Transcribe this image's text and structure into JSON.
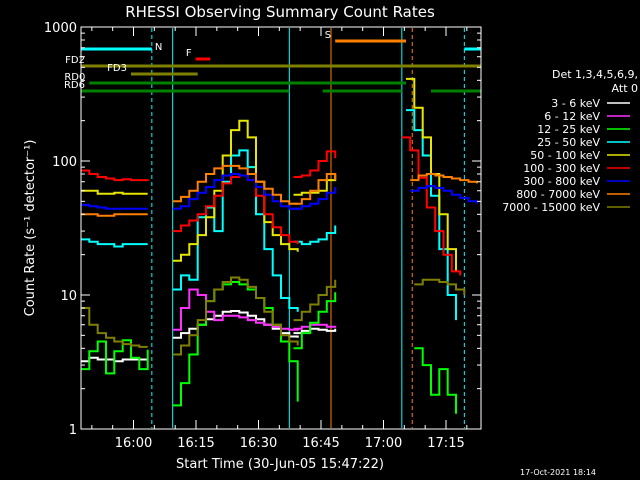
{
  "chart_data": {
    "type": "line",
    "title": "RHESSI Observing Summary Count Rates",
    "xlabel": "Start Time (30-Jun-05 15:47:22)",
    "ylabel": "Count Rate (s⁻¹ detector⁻¹)",
    "yscale": "log",
    "ylim": [
      1,
      1000
    ],
    "xlim_minutes": [
      0,
      96
    ],
    "x_ticks": [
      {
        "t": 12.6,
        "label": "16:00"
      },
      {
        "t": 27.6,
        "label": "16:15"
      },
      {
        "t": 42.6,
        "label": "16:30"
      },
      {
        "t": 57.6,
        "label": "16:45"
      },
      {
        "t": 72.6,
        "label": "17:00"
      },
      {
        "t": 87.6,
        "label": "17:15"
      }
    ],
    "y_ticks": [
      {
        "v": 1,
        "label": "1"
      },
      {
        "v": 10,
        "label": "10"
      },
      {
        "v": 100,
        "label": "100"
      },
      {
        "v": 1000,
        "label": "1000"
      }
    ],
    "legend_title": [
      "Det 1,3,4,5,6,9,",
      "Att 0"
    ],
    "legend_placement": "right",
    "series": [
      {
        "name": "3 - 6 keV",
        "color": "#ffffff",
        "segments": [
          {
            "t": [
              0,
              2,
              4,
              6,
              8,
              10,
              12,
              14,
              16
            ],
            "v": [
              3.2,
              3.4,
              3.3,
              3.3,
              3.2,
              3.3,
              3.3,
              3.3,
              3.3
            ]
          },
          {
            "t": [
              22,
              24,
              26,
              28,
              30,
              32,
              34,
              36,
              38,
              40,
              42,
              44,
              46,
              48,
              50,
              52
            ],
            "v": [
              4.8,
              5.2,
              5.6,
              6,
              6.6,
              7,
              7.5,
              7.6,
              7.4,
              7,
              6.6,
              6,
              5.6,
              5.2,
              4.9,
              4.8
            ]
          },
          {
            "t": [
              51,
              53,
              55,
              57,
              59,
              61
            ],
            "v": [
              5.2,
              5.4,
              5.6,
              5.5,
              5.4,
              5.6
            ]
          }
        ]
      },
      {
        "name": "6 - 12 keV",
        "color": "#ff30ff",
        "segments": [
          {
            "t": [
              22,
              24,
              26,
              28,
              30,
              32,
              34,
              36,
              38,
              40,
              42,
              44,
              46,
              48,
              50,
              52
            ],
            "v": [
              5.5,
              8,
              11,
              10,
              7.5,
              6.5,
              7,
              7,
              6.8,
              6.5,
              6.2,
              6,
              5.8,
              5.6,
              5.5,
              5.4
            ]
          },
          {
            "t": [
              51,
              53,
              55,
              57,
              59,
              61
            ],
            "v": [
              5.6,
              5.8,
              6,
              6,
              5.8,
              5.9
            ]
          }
        ]
      },
      {
        "name": "12 - 25 keV",
        "color": "#00ff00",
        "segments": [
          {
            "t": [
              0,
              2,
              4,
              6,
              8,
              10,
              12,
              14,
              16
            ],
            "v": [
              2.8,
              3.8,
              4.5,
              2.6,
              3.8,
              4.6,
              3.4,
              2.8,
              3.9
            ]
          },
          {
            "t": [
              22,
              24,
              26,
              28,
              30,
              32,
              34,
              36,
              38,
              40,
              42,
              44,
              46,
              48,
              50,
              52
            ],
            "v": [
              1.5,
              2.2,
              3.6,
              6,
              9,
              11,
              12,
              12.5,
              12,
              11,
              9.5,
              8,
              6,
              4.5,
              3.2,
              1.6
            ]
          },
          {
            "t": [
              51,
              53,
              55,
              57,
              59,
              61
            ],
            "v": [
              4,
              5.2,
              6.2,
              7.5,
              9,
              10.5
            ]
          },
          {
            "t": [
              80,
              82,
              84,
              86,
              88,
              90
            ],
            "v": [
              4,
              3,
              1.8,
              2.8,
              1.8,
              1.3
            ]
          }
        ]
      },
      {
        "name": "25 - 50 keV",
        "color": "#00ffff",
        "segments": [
          {
            "t": [
              0,
              2,
              4,
              6,
              8,
              10,
              12,
              14,
              16
            ],
            "v": [
              26,
              25,
              24,
              24,
              23,
              24,
              24,
              24,
              24
            ]
          },
          {
            "t": [
              22,
              24,
              26,
              28,
              30,
              32,
              34,
              36,
              38,
              40,
              42,
              44,
              46,
              48,
              50,
              52
            ],
            "v": [
              11,
              14,
              13,
              38,
              45,
              30,
              70,
              110,
              120,
              90,
              40,
              22,
              14,
              9.5,
              8,
              7.5
            ]
          },
          {
            "t": [
              51,
              53,
              55,
              57,
              59,
              61
            ],
            "v": [
              25,
              24,
              25,
              26,
              29,
              33
            ]
          },
          {
            "t": [
              78,
              80,
              82,
              84,
              86,
              88,
              90
            ],
            "v": [
              240,
              170,
              110,
              55,
              22,
              10,
              6.5
            ]
          }
        ]
      },
      {
        "name": "50 - 100 keV",
        "color": "#e6e600",
        "segments": [
          {
            "t": [
              0,
              2,
              4,
              6,
              8,
              10,
              12,
              14,
              16
            ],
            "v": [
              60,
              60,
              57,
              57,
              58,
              57,
              57,
              57,
              57
            ]
          },
          {
            "t": [
              22,
              24,
              26,
              28,
              30,
              32,
              34,
              36,
              38,
              40,
              42,
              44,
              46,
              48,
              50,
              52
            ],
            "v": [
              18,
              20,
              24,
              28,
              38,
              60,
              110,
              170,
              200,
              150,
              70,
              35,
              28,
              24,
              22,
              21
            ]
          },
          {
            "t": [
              51,
              53,
              55,
              57,
              59,
              61
            ],
            "v": [
              56,
              58,
              58,
              60,
              72,
              80
            ]
          },
          {
            "t": [
              78,
              80,
              82,
              84,
              86,
              88,
              90
            ],
            "v": [
              410,
              250,
              150,
              80,
              40,
              22,
              15
            ]
          }
        ]
      },
      {
        "name": "100 - 300 keV",
        "color": "#ff0000",
        "segments": [
          {
            "t": [
              0,
              2,
              4,
              6,
              8,
              10,
              12,
              14,
              16
            ],
            "v": [
              85,
              80,
              76,
              74,
              72,
              73,
              72,
              72,
              73
            ]
          },
          {
            "t": [
              22,
              24,
              26,
              28,
              30,
              32,
              34,
              36,
              38,
              40,
              42,
              44,
              46,
              48,
              50,
              52
            ],
            "v": [
              30,
              33,
              36,
              40,
              46,
              55,
              68,
              76,
              78,
              72,
              55,
              40,
              32,
              28,
              25,
              24
            ]
          },
          {
            "t": [
              51,
              53,
              55,
              57,
              59,
              61
            ],
            "v": [
              76,
              78,
              85,
              100,
              118,
              105
            ]
          },
          {
            "t": [
              77,
              79,
              81,
              83,
              85,
              87,
              89,
              91
            ],
            "v": [
              150,
              120,
              75,
              45,
              30,
              20,
              15,
              14
            ]
          }
        ]
      },
      {
        "name": "300 - 800 keV",
        "color": "#0000ff",
        "segments": [
          {
            "t": [
              0,
              2,
              4,
              6,
              8,
              10,
              12,
              14,
              16
            ],
            "v": [
              47,
              46,
              45,
              44,
              44,
              44,
              44,
              44,
              44
            ]
          },
          {
            "t": [
              22,
              24,
              26,
              28,
              30,
              32,
              34,
              36,
              38,
              40,
              42,
              44,
              46,
              48,
              50,
              52
            ],
            "v": [
              44,
              46,
              52,
              58,
              64,
              72,
              78,
              80,
              78,
              72,
              64,
              56,
              50,
              46,
              44,
              43
            ]
          },
          {
            "t": [
              51,
              53,
              55,
              57,
              59,
              61
            ],
            "v": [
              44,
              46,
              48,
              52,
              58,
              64
            ]
          },
          {
            "t": [
              79,
              81,
              83,
              85,
              87,
              89,
              91,
              93,
              95
            ],
            "v": [
              60,
              63,
              65,
              63,
              60,
              56,
              53,
              50,
              48
            ]
          }
        ]
      },
      {
        "name": "800 - 7000 keV",
        "color": "#ff8000",
        "segments": [
          {
            "t": [
              0,
              2,
              4,
              6,
              8,
              10,
              12,
              14,
              16
            ],
            "v": [
              40,
              40,
              39,
              39,
              40,
              40,
              40,
              40,
              40
            ]
          },
          {
            "t": [
              22,
              24,
              26,
              28,
              30,
              32,
              34,
              36,
              38,
              40,
              42,
              44,
              46,
              48,
              50,
              52
            ],
            "v": [
              50,
              54,
              60,
              70,
              80,
              88,
              92,
              92,
              88,
              80,
              70,
              62,
              56,
              50,
              48,
              48
            ]
          },
          {
            "t": [
              51,
              53,
              55,
              57,
              59,
              61
            ],
            "v": [
              48,
              52,
              60,
              72,
              80,
              72
            ]
          },
          {
            "t": [
              79,
              81,
              83,
              85,
              87,
              89,
              91,
              93,
              95
            ],
            "v": [
              72,
              78,
              80,
              78,
              76,
              74,
              72,
              70,
              68
            ]
          }
        ]
      },
      {
        "name": "7000 - 15000 keV",
        "color": "#808000",
        "segments": [
          {
            "t": [
              0,
              2,
              4,
              6,
              8,
              10,
              12,
              14,
              16
            ],
            "v": [
              8,
              6,
              5.2,
              4.8,
              4.5,
              4.3,
              4.2,
              4.1,
              4.1
            ]
          },
          {
            "t": [
              22,
              24,
              26,
              28,
              30,
              32,
              34,
              36,
              38,
              40,
              42,
              44,
              46,
              48,
              50,
              52
            ],
            "v": [
              3.6,
              4.2,
              5,
              6.5,
              9,
              11,
              12.5,
              13.5,
              13,
              11.5,
              9.5,
              7.5,
              6,
              5,
              4.5,
              4.2
            ]
          },
          {
            "t": [
              51,
              53,
              55,
              57,
              59,
              61
            ],
            "v": [
              6.5,
              7.5,
              8.5,
              10,
              11.5,
              13
            ]
          },
          {
            "t": [
              80,
              82,
              84,
              86,
              88,
              90,
              92
            ],
            "v": [
              12,
              13,
              13,
              12.5,
              12,
              11,
              10
            ]
          }
        ]
      }
    ],
    "flag_bars": [
      {
        "label": "",
        "color": "#00ffff",
        "ranges": [
          [
            0,
            17
          ],
          [
            92,
            96
          ]
        ]
      },
      {
        "label": "S",
        "color": "#ff8000",
        "ranges": [
          [
            61,
            78
          ]
        ]
      },
      {
        "label": "F",
        "color": "#ff0000",
        "ranges": [
          [
            27.5,
            31
          ]
        ]
      },
      {
        "label": "FD2",
        "color": "#808000",
        "ranges": [
          [
            0,
            96
          ]
        ]
      },
      {
        "label": "FD3",
        "color": "#808000",
        "ranges": [
          [
            12,
            28
          ]
        ]
      },
      {
        "label": "RD0",
        "color": "#008000",
        "ranges": [
          [
            2,
            78
          ]
        ]
      },
      {
        "label": "RD6",
        "color": "#008000",
        "ranges": [
          [
            0,
            24
          ],
          [
            22,
            50
          ],
          [
            58,
            77
          ],
          [
            84,
            96
          ]
        ]
      }
    ],
    "vlines": [
      {
        "t": 17,
        "color": "#00ffff",
        "style": "dash"
      },
      {
        "t": 22,
        "color": "#00ffff",
        "style": "solid"
      },
      {
        "t": 50,
        "color": "#00ffff",
        "style": "solid"
      },
      {
        "t": 60,
        "color": "#ff8000",
        "style": "solid"
      },
      {
        "t": 77,
        "color": "#00ffff",
        "style": "solid"
      },
      {
        "t": 79.5,
        "color": "#ff8000",
        "style": "dash"
      },
      {
        "t": 92,
        "color": "#00ffff",
        "style": "dash"
      }
    ],
    "vline_label": "N",
    "timestamp": "17-Oct-2021 18:14"
  }
}
